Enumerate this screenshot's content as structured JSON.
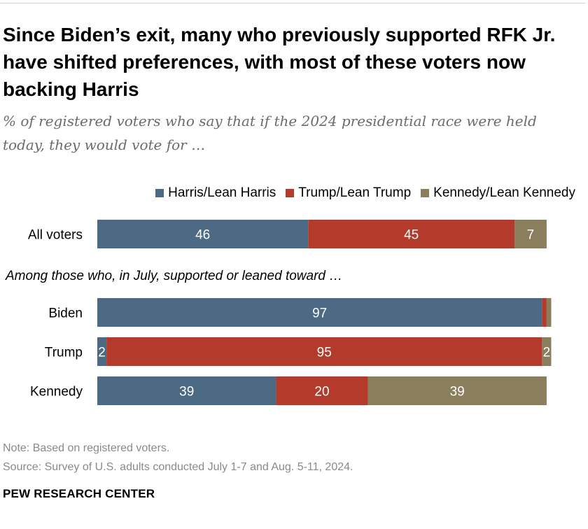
{
  "title": "Since Biden’s exit, many who previously supported RFK Jr. have shifted preferences, with most of these voters now backing Harris",
  "subtitle": "% of registered voters who say that if the 2024 presidential race were held today, they would vote for …",
  "legend": [
    {
      "label": "Harris/Lean Harris",
      "color": "#4d6a84"
    },
    {
      "label": "Trump/Lean Trump",
      "color": "#b43a2c"
    },
    {
      "label": "Kennedy/Lean Kennedy",
      "color": "#8b7e5d"
    }
  ],
  "chart_data": {
    "type": "bar",
    "orientation": "horizontal",
    "stacked": true,
    "categories": [
      "All voters",
      "Biden",
      "Trump",
      "Kennedy"
    ],
    "section_label": "Among those who, in July, supported or leaned toward …",
    "series": [
      {
        "name": "Harris/Lean Harris",
        "color": "#4d6a84",
        "values": [
          46,
          97,
          2,
          39
        ],
        "labels": [
          "46",
          "97",
          "2",
          "39"
        ]
      },
      {
        "name": "Trump/Lean Trump",
        "color": "#b43a2c",
        "values": [
          45,
          1,
          95,
          20
        ],
        "labels": [
          "45",
          "",
          "95",
          "20"
        ]
      },
      {
        "name": "Kennedy/Lean Kennedy",
        "color": "#8b7e5d",
        "values": [
          7,
          1,
          2,
          39
        ],
        "labels": [
          "7",
          "",
          "2",
          "39"
        ]
      }
    ]
  },
  "footer": {
    "note": "Note: Based on registered voters.",
    "source": "Source: Survey of U.S. adults conducted July 1-7 and Aug. 5-11, 2024.",
    "brand": "PEW RESEARCH CENTER"
  }
}
